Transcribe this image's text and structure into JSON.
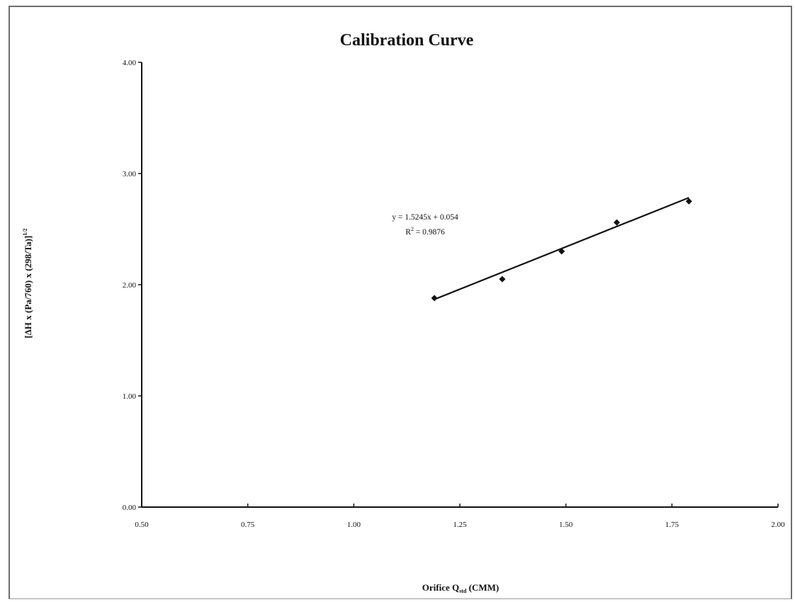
{
  "chart_data": {
    "type": "scatter",
    "title": "Calibration Curve",
    "xlabel": {
      "main": "Orifice Q",
      "sub": "std",
      "suffix": " (CMM)"
    },
    "ylabel": {
      "main": "[ΔH x (Pa/760) x (298/Ta)]",
      "sup": "1/2"
    },
    "xlim": [
      0.5,
      2.0
    ],
    "ylim": [
      0.0,
      4.0
    ],
    "x_ticks": [
      "0.50",
      "0.75",
      "1.00",
      "1.25",
      "1.50",
      "1.75",
      "2.00"
    ],
    "y_ticks": [
      "0.00",
      "1.00",
      "2.00",
      "3.00",
      "4.00"
    ],
    "series": [
      {
        "points": [
          {
            "x": 1.19,
            "y": 1.88
          },
          {
            "x": 1.35,
            "y": 2.05
          },
          {
            "x": 1.49,
            "y": 2.3
          },
          {
            "x": 1.62,
            "y": 2.56
          },
          {
            "x": 1.79,
            "y": 2.75
          }
        ]
      }
    ],
    "trendline": {
      "slope": 1.5245,
      "intercept": 0.054,
      "x_range": [
        1.19,
        1.79
      ]
    },
    "annotation": {
      "equation": "y = 1.5245x + 0.054",
      "r2_prefix": "R",
      "r2_sup": "2",
      "r2_suffix": " = 0.9876"
    },
    "grid": false,
    "legend": "none"
  }
}
